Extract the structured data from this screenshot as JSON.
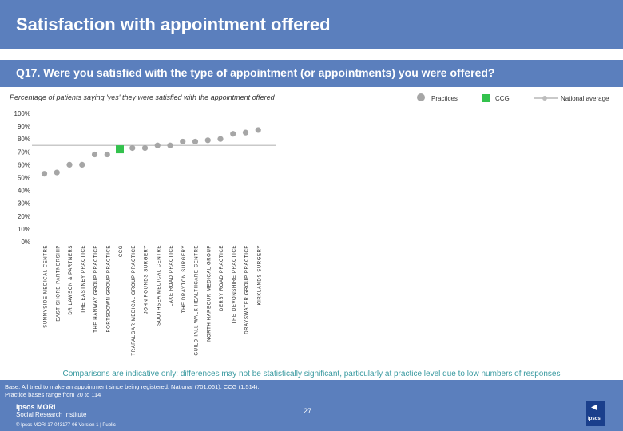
{
  "header": {
    "title": "Satisfaction with appointment offered"
  },
  "question": {
    "text": "Q17. Were you satisfied with the type of appointment (or appointments) you were offered?"
  },
  "subtitle": "Percentage of patients saying 'yes' they were satisfied with the appointment offered",
  "legend": {
    "practices": "Practices",
    "ccg": "CCG",
    "national": "National average"
  },
  "colors": {
    "header": "#5b7fbd",
    "practice": "#a6a6a6",
    "ccg": "#33c24d",
    "national": "#c9c9c9",
    "note": "#3a9aa0"
  },
  "chart_data": {
    "type": "scatter",
    "categories": [
      "SUNNYSIDE MEDICAL CENTRE",
      "EAST SHORE PARTNERSHIP",
      "DR LAWSON & PARTNERS",
      "THE EASTNEY PRACTICE",
      "THE HANWAY GROUP PRACTICE",
      "PORTSDOWN GROUP PRACTICE",
      "CCG",
      "TRAFALGAR MEDICAL GROUP PRACTICE",
      "JOHN POUNDS SURGERY",
      "SOUTHSEA MEDICAL CENTRE",
      "LAKE ROAD PRACTICE",
      "THE DRAYTON SURGERY",
      "GUILDHALL WALK HEALTHCARE CENTRE",
      "NORTH HARBOUR MEDICAL GROUP",
      "DERBY ROAD PRACTICE",
      "THE DEVONSHIRE PRACTICE",
      "DRAYSWATER GROUP PRACTICE",
      "KIRKLANDS SURGERY"
    ],
    "values": [
      53,
      54,
      60,
      60,
      68,
      68,
      72,
      73,
      73,
      75,
      75,
      78,
      78,
      79,
      80,
      84,
      85,
      87
    ],
    "ccg_index": 6,
    "national_average": 75,
    "ylim": [
      0,
      100
    ],
    "yticks": [
      "0%",
      "10%",
      "20%",
      "30%",
      "40%",
      "50%",
      "60%",
      "70%",
      "80%",
      "90%",
      "100%"
    ]
  },
  "note": "Comparisons are indicative only: differences may not be statistically significant, particularly at practice level due to low numbers of responses",
  "footer": {
    "base_line1": "Base: All tried to make an appointment since being registered: National (701,061); CCG (1,514);",
    "base_line2": "Practice bases range from 20 to 114",
    "logo_main": "Ipsos MORI",
    "logo_sub": "Social Research Institute",
    "copyright": "© Ipsos MORI     17-043177-06 Version 1 | Public",
    "page": "27",
    "brand": "Ipsos"
  }
}
